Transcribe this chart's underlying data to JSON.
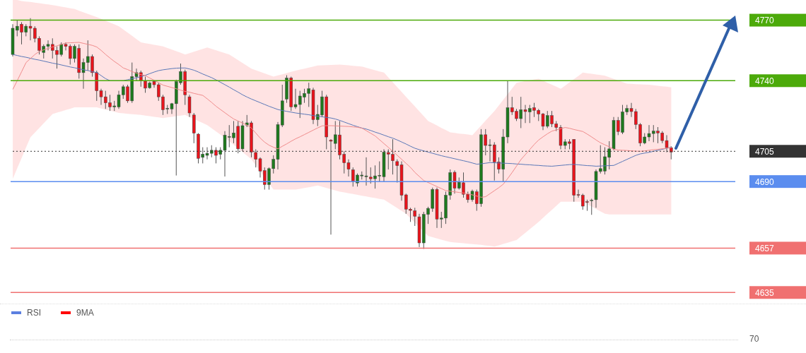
{
  "chart_data": {
    "type": "candlestick",
    "yticks": [
      4635,
      4657,
      4690,
      4705,
      4740,
      4770
    ],
    "categories": [
      null,
      null,
      null,
      null,
      null,
      null,
      null,
      null,
      null,
      null,
      null,
      null,
      null,
      null,
      null,
      null,
      null,
      null,
      null,
      null,
      null,
      null,
      null,
      null,
      null,
      null,
      null,
      null,
      null,
      null,
      null,
      null,
      null,
      null,
      null,
      null,
      null,
      null,
      null,
      null,
      null,
      null,
      null,
      null,
      null,
      null,
      null,
      null,
      null,
      null,
      null,
      null,
      null,
      null,
      null,
      null,
      null,
      null,
      null,
      null,
      null,
      null,
      null,
      null,
      null,
      null,
      null,
      null,
      null,
      null,
      null,
      null,
      null,
      null,
      null,
      null,
      null,
      null,
      null,
      null,
      null,
      null,
      null,
      null,
      null,
      null,
      null,
      null,
      null,
      null,
      null,
      null,
      null,
      null,
      null,
      null,
      null,
      null,
      null,
      null,
      null,
      null,
      null,
      null,
      null,
      null,
      null,
      null,
      null,
      null,
      null,
      null,
      null,
      null,
      null,
      null,
      null,
      null,
      null,
      null,
      null,
      null,
      null,
      null,
      null,
      null,
      null,
      null,
      null,
      null,
      null,
      null,
      null,
      null,
      null,
      null,
      null,
      null,
      null,
      null,
      null,
      null,
      null,
      null,
      null,
      null,
      null,
      null,
      null,
      null
    ],
    "ohlc": [
      [
        4753,
        4768,
        4752,
        4766
      ],
      [
        4765,
        4770,
        4762,
        4767
      ],
      [
        4768,
        4769,
        4758,
        4764
      ],
      [
        4764,
        4768,
        4762,
        4767
      ],
      [
        4767,
        4771,
        4760,
        4766
      ],
      [
        4766,
        4767,
        4759,
        4761
      ],
      [
        4761,
        4762,
        4753,
        4755
      ],
      [
        4754,
        4758,
        4751,
        4757
      ],
      [
        4757,
        4760,
        4755,
        4758
      ],
      [
        4758,
        4761,
        4751,
        4755
      ],
      [
        4755,
        4757,
        4746,
        4753
      ],
      [
        4753,
        4759,
        4752,
        4758
      ],
      [
        4758,
        4759,
        4755,
        4757
      ],
      [
        4757,
        4758,
        4748,
        4751
      ],
      [
        4751,
        4758,
        4749,
        4757
      ],
      [
        4756,
        4758,
        4741,
        4744
      ],
      [
        4744,
        4751,
        4736,
        4749
      ],
      [
        4749,
        4760,
        4745,
        4752
      ],
      [
        4752,
        4753,
        4742,
        4744
      ],
      [
        4744,
        4745,
        4730,
        4735
      ],
      [
        4735,
        4736,
        4728,
        4732
      ],
      [
        4732,
        4735,
        4726,
        4729
      ],
      [
        4729,
        4733,
        4725,
        4727
      ],
      [
        4727,
        4730,
        4725,
        4727.5
      ],
      [
        4727,
        4735,
        4726,
        4733
      ],
      [
        4733,
        4738,
        4731,
        4737
      ],
      [
        4737,
        4738,
        4729,
        4730
      ],
      [
        4730,
        4749,
        4729,
        4742
      ],
      [
        4742,
        4746,
        4740,
        4744
      ],
      [
        4744,
        4745,
        4737,
        4740
      ],
      [
        4739.8,
        4742,
        4734,
        4736.3
      ],
      [
        4736.5,
        4739.5,
        4736,
        4738.8
      ],
      [
        4739.6,
        4740,
        4736.5,
        4738
      ],
      [
        4738,
        4739,
        4730,
        4732
      ],
      [
        4732,
        4733,
        4723,
        4725.6
      ],
      [
        4726,
        4728,
        4723.5,
        4726.3
      ],
      [
        4726,
        4729,
        4723.5,
        4728.6
      ],
      [
        4728.6,
        4740.5,
        4693,
        4739.5
      ],
      [
        4739,
        4748.5,
        4738,
        4744.5
      ],
      [
        4744.5,
        4745.5,
        4728,
        4733
      ],
      [
        4732,
        4733,
        4722,
        4724
      ],
      [
        4723,
        4724,
        4709,
        4714
      ],
      [
        4713.5,
        4714,
        4699,
        4701.5
      ],
      [
        4702,
        4707,
        4699,
        4703.6
      ],
      [
        4703,
        4707,
        4701,
        4704
      ],
      [
        4704,
        4708,
        4702,
        4705.5
      ],
      [
        4705.5,
        4707,
        4699,
        4703
      ],
      [
        4703.5,
        4707,
        4701,
        4705.5
      ],
      [
        4705.5,
        4715,
        4692.5,
        4713
      ],
      [
        4712,
        4718,
        4707,
        4712.3
      ],
      [
        4711.7,
        4720,
        4709,
        4714.1
      ],
      [
        4717.4,
        4720,
        4704,
        4706.2
      ],
      [
        4706.2,
        4720,
        4705,
        4717.7
      ],
      [
        4718,
        4723,
        4717,
        4719.1
      ],
      [
        4719.1,
        4720,
        4702,
        4704.6
      ],
      [
        4704.4,
        4706,
        4697,
        4701
      ],
      [
        4701.3,
        4702,
        4692,
        4695.2
      ],
      [
        4695.4,
        4697,
        4686,
        4688.5
      ],
      [
        4688.5,
        4697,
        4686,
        4696.4
      ],
      [
        4696.4,
        4703,
        4694,
        4701
      ],
      [
        4701,
        4719.5,
        4696,
        4718.2
      ],
      [
        4718,
        4738,
        4717,
        4730
      ],
      [
        4730.9,
        4742.7,
        4729,
        4741.3
      ],
      [
        4741.3,
        4742,
        4725,
        4727
      ],
      [
        4727,
        4736,
        4726,
        4728.2
      ],
      [
        4728.2,
        4735,
        4721.5,
        4732.4
      ],
      [
        4731.8,
        4736,
        4729,
        4733.7
      ],
      [
        4733.7,
        4739,
        4727,
        4736
      ],
      [
        4735.4,
        4736.5,
        4718.5,
        4720.7
      ],
      [
        4720.7,
        4728,
        4717.5,
        4723.3
      ],
      [
        4723,
        4735,
        4722,
        4732
      ],
      [
        4732,
        4733,
        4706,
        4712.1
      ],
      [
        4710.5,
        4711,
        4663.7,
        4710
      ],
      [
        4708.9,
        4720,
        4706,
        4713.2
      ],
      [
        4713.1,
        4720,
        4701,
        4703.2
      ],
      [
        4703.5,
        4705,
        4694,
        4699.3
      ],
      [
        4699.3,
        4701,
        4692.5,
        4696.1
      ],
      [
        4695.8,
        4697,
        4687.5,
        4690.2
      ],
      [
        4689.3,
        4694,
        4687.5,
        4693.2
      ],
      [
        4692.8,
        4695,
        4691,
        4693.2
      ],
      [
        4692.4,
        4702,
        4688,
        4692.8
      ],
      [
        4692.2,
        4697,
        4689,
        4691.4
      ],
      [
        4691.4,
        4698,
        4686.5,
        4692.8
      ],
      [
        4692.8,
        4700,
        4690,
        4693.1
      ],
      [
        4692.4,
        4706,
        4690,
        4704.6
      ],
      [
        4704.4,
        4706,
        4696,
        4703.6
      ],
      [
        4703.5,
        4711,
        4693.5,
        4700.3
      ],
      [
        4699.9,
        4701,
        4689.5,
        4697.9
      ],
      [
        4698.3,
        4700,
        4680.5,
        4683.2
      ],
      [
        4683.4,
        4684,
        4674,
        4676.3
      ],
      [
        4676.3,
        4677,
        4670,
        4675.7
      ],
      [
        4675.5,
        4677,
        4668,
        4672.8
      ],
      [
        4672.5,
        4674,
        4657.5,
        4659.6
      ],
      [
        4659.6,
        4675,
        4656.6,
        4673.7
      ],
      [
        4673.7,
        4677.5,
        4669,
        4676.7
      ],
      [
        4676.7,
        4687,
        4675,
        4686.1
      ],
      [
        4686.1,
        4687,
        4667,
        4671.4
      ],
      [
        4671.4,
        4675,
        4667,
        4671.9
      ],
      [
        4671.9,
        4685,
        4669,
        4683.2
      ],
      [
        4683.2,
        4696,
        4681,
        4694.4
      ],
      [
        4694.6,
        4695.5,
        4684,
        4686.7
      ],
      [
        4686.7,
        4692,
        4686,
        4689.6
      ],
      [
        4689.4,
        4694.5,
        4682,
        4683.7
      ],
      [
        4683.7,
        4685,
        4679.5,
        4681
      ],
      [
        4681,
        4686,
        4680,
        4685.2
      ],
      [
        4684.9,
        4686,
        4675.5,
        4679
      ],
      [
        4679,
        4716,
        4677.5,
        4713.2
      ],
      [
        4713.2,
        4716,
        4703,
        4707.9
      ],
      [
        4707.9,
        4711,
        4700,
        4708.2
      ],
      [
        4708.2,
        4709.5,
        4690.5,
        4699.7
      ],
      [
        4699.7,
        4702,
        4694,
        4696.1
      ],
      [
        4696.1,
        4716,
        4690,
        4712.1
      ],
      [
        4712.1,
        4739.8,
        4709,
        4726.6
      ],
      [
        4726.6,
        4732,
        4723,
        4724.5
      ],
      [
        4724.8,
        4726,
        4720,
        4721.2
      ],
      [
        4721.2,
        4732,
        4716.5,
        4725.6
      ],
      [
        4725.6,
        4728,
        4719,
        4724.7
      ],
      [
        4724.5,
        4728,
        4719,
        4726.2
      ],
      [
        4726.6,
        4729,
        4722,
        4725.3
      ],
      [
        4725.3,
        4726,
        4720,
        4723.5
      ],
      [
        4723.5,
        4724,
        4715.5,
        4717.4
      ],
      [
        4717.4,
        4725,
        4716.5,
        4722.7
      ],
      [
        4722.7,
        4725,
        4717,
        4718.6
      ],
      [
        4718.6,
        4720,
        4715,
        4716.8
      ],
      [
        4716.8,
        4718,
        4706,
        4707.9
      ],
      [
        4707.9,
        4711,
        4706,
        4709.7
      ],
      [
        4709.7,
        4711,
        4706,
        4708.9
      ],
      [
        4710.9,
        4711,
        4680,
        4683.2
      ],
      [
        4683.5,
        4686,
        4682,
        4683.2
      ],
      [
        4683.2,
        4684,
        4676,
        4677.8
      ],
      [
        4680,
        4681,
        4675.5,
        4679.9
      ],
      [
        4680.6,
        4681.5,
        4673.5,
        4680.8
      ],
      [
        4681,
        4696,
        4677,
        4695
      ],
      [
        4695,
        4708,
        4694,
        4696.4
      ],
      [
        4695.2,
        4707,
        4693.5,
        4702.3
      ],
      [
        4702,
        4710,
        4696,
        4706.2
      ],
      [
        4706.2,
        4722,
        4705.5,
        4720.3
      ],
      [
        4720.3,
        4722,
        4713,
        4714.8
      ],
      [
        4714.4,
        4728,
        4713.5,
        4724.5
      ],
      [
        4724.5,
        4728,
        4723,
        4726.2
      ],
      [
        4726.2,
        4729,
        4722,
        4724.7
      ],
      [
        4724.7,
        4726,
        4716,
        4718.3
      ],
      [
        4718.3,
        4719,
        4707.5,
        4709.1
      ],
      [
        4709.1,
        4714,
        4708.5,
        4712.1
      ],
      [
        4712.1,
        4718,
        4710,
        4713.8
      ],
      [
        4713.8,
        4718,
        4709.5,
        4715
      ],
      [
        4715,
        4717,
        4709,
        4714.1
      ],
      [
        4714.1,
        4715,
        4709,
        4710.3
      ],
      [
        4710.3,
        4713,
        4704.5,
        4706.8
      ],
      [
        4706.8,
        4707.5,
        4701,
        4704.6
      ]
    ],
    "series": [
      {
        "type": "line",
        "color": "#5a78b8",
        "values": [
          4753,
          4752.5,
          4752,
          4751.6,
          4751.1,
          4750.6,
          4750.2,
          4749.7,
          4749.2,
          4748.7,
          4748.3,
          4747.8,
          4747.3,
          4746.8,
          4746.4,
          4745.9,
          4745.4,
          4745,
          4744.5,
          4744,
          4742.5,
          4741,
          4740,
          4740,
          4740,
          4740,
          4740.5,
          4741,
          4741.5,
          4742,
          4742.7,
          4743.5,
          4744.3,
          4745,
          4745.4,
          4745.7,
          4746,
          4746.2,
          4746.3,
          4746.3,
          4745.8,
          4745.2,
          4744.3,
          4743.3,
          4742.4,
          4741.5,
          4740.4,
          4739.2,
          4738,
          4736.8,
          4735.5,
          4734.3,
          4733,
          4731.9,
          4730.9,
          4730,
          4729.1,
          4728.2,
          4727.3,
          4726.5,
          4725.7,
          4725.2,
          4724.8,
          4724.4,
          4724,
          4723.7,
          4723.4,
          4723.1,
          4722.7,
          4722.4,
          4722.1,
          4721.8,
          4721.5,
          4721,
          4720.3,
          4719.5,
          4718.7,
          4717.9,
          4717.2,
          4716.5,
          4716,
          4715.3,
          4714.5,
          4713.8,
          4713,
          4712.2,
          4711.5,
          4710.6,
          4709.6,
          4708.6,
          4707.5,
          4706.5,
          4705.8,
          4705.2,
          4704.6,
          4704,
          4703.4,
          4702.8,
          4702.3,
          4701.8,
          4701.3,
          4700.8,
          4700.3,
          4699.8,
          4699.2,
          4698.6,
          4698.8,
          4699.1,
          4699.4,
          4699.3,
          4699.2,
          4699.1,
          4699,
          4698.9,
          4698.7,
          4698.6,
          4698.4,
          4698.3,
          4698.1,
          4698,
          4697.8,
          4697.7,
          4697.6,
          4697.8,
          4698,
          4698.2,
          4698.4,
          4698.5,
          4698.3,
          4698.1,
          4697.9,
          4697.8,
          4697.6,
          4697.7,
          4697.8,
          4697.9,
          4698,
          4699,
          4700,
          4701,
          4702,
          4703,
          4703.7,
          4704.1,
          4704.5,
          4705,
          4705.5,
          4706,
          4706.5,
          4707
        ]
      },
      {
        "type": "line",
        "color": "#f08c8c",
        "values": [
          4735.7,
          4740,
          4744.5,
          4749,
          4751,
          4753,
          4754.5,
          4755.3,
          4756,
          4756.7,
          4757.3,
          4758,
          4758.7,
          4758.8,
          4758.9,
          4759,
          4758.5,
          4758,
          4757.5,
          4756.7,
          4755,
          4753,
          4751.2,
          4749.5,
          4748,
          4746.3,
          4745.5,
          4744.5,
          4743.7,
          4743,
          4742.5,
          4741.3,
          4740.2,
          4739,
          4737.8,
          4737.2,
          4736.6,
          4736,
          4735.3,
          4734.7,
          4734.3,
          4733.7,
          4733.2,
          4732.7,
          4731,
          4729.2,
          4727.3,
          4725.7,
          4724.1,
          4722.5,
          4721,
          4720,
          4719,
          4718,
          4716.5,
          4714,
          4711.5,
          4709.5,
          4708,
          4707,
          4706.2,
          4707.5,
          4708.7,
          4710,
          4711.2,
          4712.2,
          4713.3,
          4714.4,
          4715.5,
          4716.6,
          4717.6,
          4717.7,
          4717.7,
          4717.6,
          4717.5,
          4717.4,
          4717.3,
          4717.1,
          4716.9,
          4716.5,
          4715.2,
          4713.9,
          4712.6,
          4710.7,
          4708.8,
          4706.9,
          4705,
          4703,
          4701,
          4699,
          4697,
          4694.5,
          4692.5,
          4690.5,
          4689.5,
          4688.5,
          4687.5,
          4686.5,
          4685.5,
          4685.2,
          4684.9,
          4684.6,
          4684.3,
          4683.9,
          4683.4,
          4682.8,
          4682.2,
          4682.5,
          4684,
          4685.5,
          4687,
          4688.7,
          4691.5,
          4694.5,
          4697.7,
          4700.9,
          4703.4,
          4705.9,
          4708.4,
          4710.6,
          4712.2,
          4713.7,
          4715,
          4715.6,
          4716.2,
          4716.8,
          4716.4,
          4715.8,
          4715.3,
          4714.8,
          4713.5,
          4712.1,
          4710.6,
          4709.2,
          4708.2,
          4707.2,
          4706,
          4705.6,
          4705.5,
          4705.4,
          4705.2,
          4705.1,
          4705,
          4705.2,
          4705.5,
          4705.8,
          4706,
          4706.3,
          4706.5,
          4706.8
        ],
        "upper": [
          4780,
          4780,
          4779.5,
          4779.2,
          4779,
          4778.7,
          4778.4,
          4778.1,
          4777.8,
          4777.5,
          4777.1,
          4776.7,
          4776.3,
          4775.9,
          4775.5,
          4774.7,
          4773.9,
          4773.1,
          4772.3,
          4771.5,
          4770.6,
          4769.7,
          4768.8,
          4767.9,
          4767,
          4765.4,
          4763.8,
          4762.2,
          4760.6,
          4759,
          4758.6,
          4758.2,
          4757.8,
          4757.4,
          4757,
          4756.2,
          4755.4,
          4754.6,
          4753.8,
          4753,
          4753.7,
          4754.4,
          4755.1,
          4755.8,
          4756.5,
          4755.8,
          4755.1,
          4754.4,
          4753.7,
          4753,
          4751.6,
          4750.2,
          4748.8,
          4747.4,
          4746,
          4745.2,
          4744.4,
          4743.6,
          4742.8,
          4742,
          4742.6,
          4743.2,
          4743.8,
          4744.4,
          4745,
          4745.5,
          4746,
          4746.5,
          4747,
          4747.5,
          4747.6,
          4747.7,
          4747.8,
          4747.9,
          4748,
          4747.8,
          4747.6,
          4747.4,
          4747.2,
          4747,
          4746.4,
          4745.8,
          4745.2,
          4744.6,
          4744,
          4741.6,
          4739.2,
          4736.8,
          4734.4,
          4732,
          4729.6,
          4727.2,
          4724.8,
          4722.4,
          4720,
          4718.9,
          4717.8,
          4716.6,
          4715.5,
          4714.4,
          4714.1,
          4713.8,
          4713.6,
          4713.3,
          4713,
          4715.4,
          4717.8,
          4720.2,
          4722.6,
          4725,
          4727.8,
          4730.6,
          4733.4,
          4736.2,
          4739,
          4739.4,
          4739.8,
          4740.2,
          4740.6,
          4741,
          4740,
          4739,
          4738,
          4737,
          4736,
          4737.6,
          4739.2,
          4740.8,
          4742.4,
          4744,
          4743.7,
          4743.4,
          4743.1,
          4742.8,
          4742.5,
          4741.7,
          4740.9,
          4740.1,
          4739.3,
          4738.5,
          4738.4,
          4738.3,
          4738.2,
          4738.1,
          4738,
          4737.7,
          4737.5,
          4737.2,
          4737,
          4736.7
        ],
        "lower": [
          4691.4,
          4696.6,
          4701.7,
          4706.9,
          4712,
          4714.3,
          4716.6,
          4718.9,
          4721.2,
          4723.5,
          4724.2,
          4724.8,
          4725.5,
          4726.1,
          4726.8,
          4726.8,
          4726.8,
          4726.8,
          4726.8,
          4726.8,
          4726.2,
          4725.7,
          4725.1,
          4724.6,
          4724,
          4723.8,
          4723.6,
          4723.4,
          4723.2,
          4723,
          4722.7,
          4722.4,
          4722.1,
          4721.8,
          4721.5,
          4721.8,
          4722.1,
          4722.4,
          4722.7,
          4723,
          4722,
          4721,
          4720,
          4719,
          4718,
          4716.4,
          4714.8,
          4713.2,
          4711.6,
          4710,
          4708.2,
          4706.4,
          4704.6,
          4702.8,
          4701,
          4698,
          4695,
          4692,
          4689,
          4686,
          4686,
          4686,
          4686,
          4686,
          4686,
          4686.4,
          4686.8,
          4687.2,
          4687.6,
          4688,
          4687.4,
          4686.8,
          4686.2,
          4685.6,
          4685,
          4684.6,
          4684.2,
          4683.8,
          4683.4,
          4683,
          4682.6,
          4682.2,
          4681.8,
          4681.4,
          4681,
          4679.6,
          4678.2,
          4676.8,
          4675.4,
          4674,
          4671.8,
          4669.6,
          4667.4,
          4665.2,
          4663,
          4662.4,
          4661.8,
          4661.2,
          4660.6,
          4660,
          4659.8,
          4659.6,
          4659.4,
          4659.2,
          4659,
          4658.8,
          4658.6,
          4658.3,
          4658.1,
          4657.8,
          4658.4,
          4659.1,
          4659.7,
          4660.4,
          4661,
          4662.8,
          4664.6,
          4666.4,
          4668.2,
          4670,
          4672,
          4674,
          4676,
          4678,
          4680,
          4680,
          4680,
          4680,
          4680,
          4680,
          4678.8,
          4677.6,
          4676.4,
          4675.2,
          4674,
          4673.7,
          4673.7,
          4673.7,
          4673.7,
          4673.7,
          4673.7,
          4673.7,
          4673.7,
          4673.7,
          4673.7,
          4673.7,
          4673.7,
          4673.7,
          4673.7,
          4673.7
        ]
      }
    ],
    "ylim": [
      4629.5,
      4780
    ],
    "ref_lines": [
      {
        "axis": "y",
        "value": 4770,
        "color": "#4caa0a",
        "line_style": "solid"
      },
      {
        "axis": "y",
        "value": 4740,
        "color": "#4caa0a",
        "line_style": "solid"
      },
      {
        "axis": "y",
        "value": 4705,
        "color": "#333333",
        "line_style": "dotted"
      },
      {
        "axis": "y",
        "value": 4690,
        "color": "#5b8def",
        "line_style": "solid"
      },
      {
        "axis": "y",
        "value": 4657,
        "color": "#f07070",
        "line_style": "solid"
      },
      {
        "axis": "y",
        "value": 4635,
        "color": "#f07070",
        "line_style": "solid"
      }
    ],
    "annotations": [
      "RSI",
      "9MA",
      "70"
    ]
  }
}
